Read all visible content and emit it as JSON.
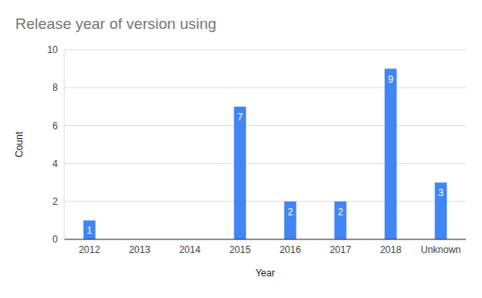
{
  "chart_data": {
    "type": "bar",
    "title": "Release year of version using",
    "x_label": "Year",
    "y_label": "Count",
    "categories": [
      "2012",
      "2013",
      "2014",
      "2015",
      "2016",
      "2017",
      "2018",
      "Unknown"
    ],
    "values": [
      1,
      0,
      0,
      7,
      2,
      2,
      9,
      3
    ],
    "color": "#4285f4",
    "ylim": [
      0,
      10
    ],
    "yticks": [
      0,
      2,
      4,
      6,
      8,
      10
    ],
    "grid": true,
    "data_labels": true
  }
}
